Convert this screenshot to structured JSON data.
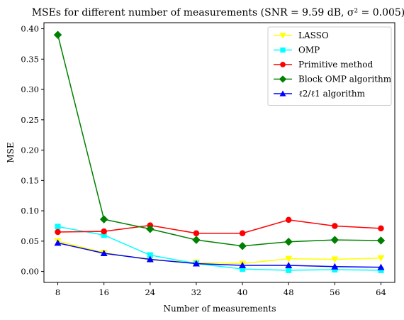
{
  "chart_data": {
    "type": "line",
    "title": "MSEs for different number of measurements (SNR = 9.59 dB, σ² = 0.005)",
    "xlabel": "Number of measurements",
    "ylabel": "MSE",
    "x": [
      8,
      16,
      24,
      32,
      40,
      48,
      56,
      64
    ],
    "xticks": [
      "8",
      "16",
      "24",
      "32",
      "40",
      "48",
      "56",
      "64"
    ],
    "yticks": [
      "0.00",
      "0.05",
      "0.10",
      "0.15",
      "0.20",
      "0.25",
      "0.30",
      "0.35",
      "0.40"
    ],
    "ylim": [
      -0.018,
      0.41
    ],
    "grid": false,
    "legend_position": "top-right",
    "series": [
      {
        "name": "LASSO",
        "color": "#ffff00",
        "marker": "triangle-down",
        "values": [
          0.05,
          0.031,
          0.019,
          0.015,
          0.013,
          0.021,
          0.02,
          0.022
        ]
      },
      {
        "name": "OMP",
        "color": "#00ffff",
        "marker": "square",
        "values": [
          0.074,
          0.06,
          0.027,
          0.013,
          0.004,
          0.002,
          0.003,
          0.002
        ]
      },
      {
        "name": "Primitive method",
        "color": "#ff0000",
        "marker": "circle",
        "values": [
          0.065,
          0.066,
          0.076,
          0.063,
          0.063,
          0.085,
          0.075,
          0.071
        ]
      },
      {
        "name": "Block OMP algorithm",
        "color": "#008000",
        "marker": "diamond",
        "values": [
          0.39,
          0.086,
          0.07,
          0.052,
          0.042,
          0.049,
          0.052,
          0.051
        ]
      },
      {
        "name": "ℓ2/ℓ1 algorithm",
        "color": "#0000ff",
        "marker": "triangle-up",
        "values": [
          0.047,
          0.03,
          0.02,
          0.013,
          0.01,
          0.01,
          0.008,
          0.007
        ]
      }
    ]
  }
}
